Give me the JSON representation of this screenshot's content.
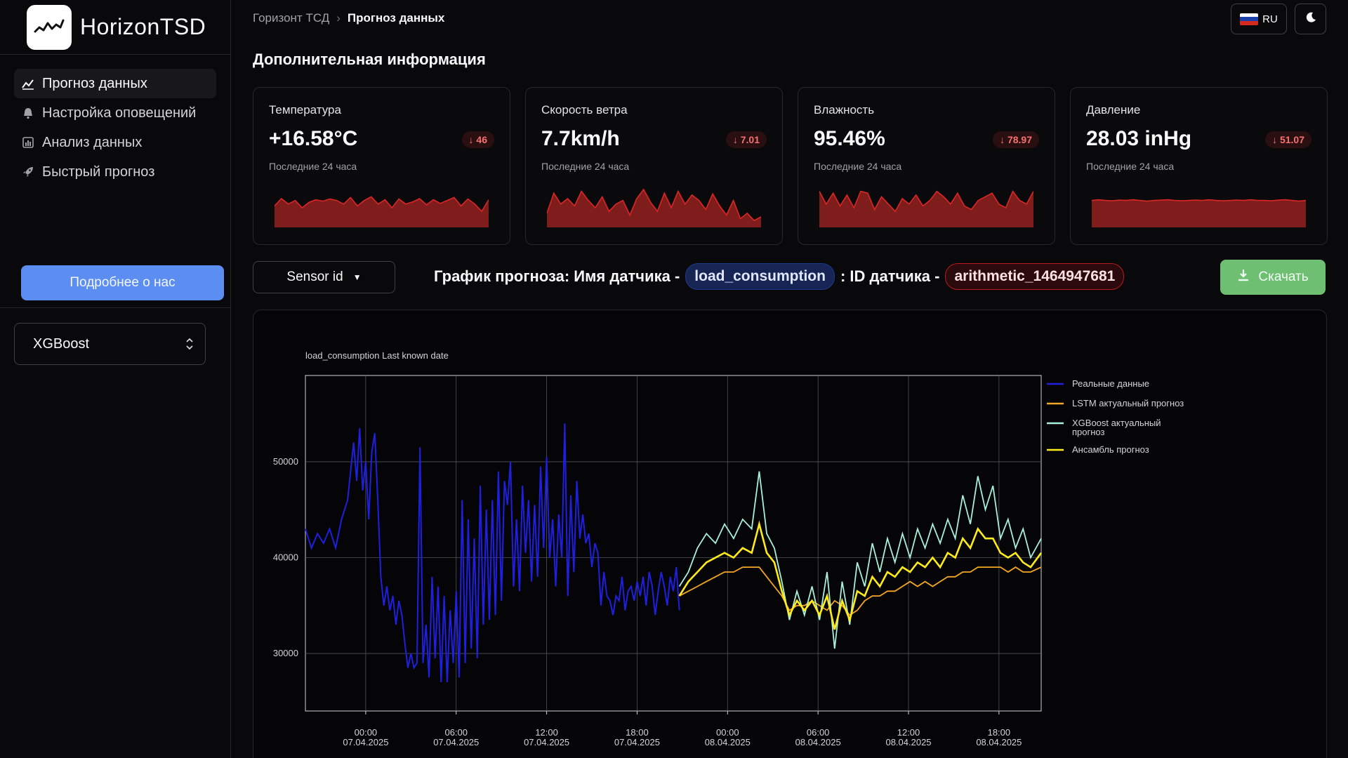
{
  "app": {
    "name": "HorizonTSD"
  },
  "sidebar": {
    "items": [
      {
        "label": "Прогноз данных",
        "icon": "chart-line-icon",
        "active": true
      },
      {
        "label": "Настройка оповещений",
        "icon": "bell-icon",
        "active": false
      },
      {
        "label": "Анализ данных",
        "icon": "bar-chart-icon",
        "active": false
      },
      {
        "label": "Быстрый прогноз",
        "icon": "rocket-icon",
        "active": false
      }
    ],
    "about_button": "Подробнее о нас",
    "model_select": {
      "value": "XGBoost"
    }
  },
  "breadcrumb": {
    "root": "Горизонт ТСД",
    "current": "Прогноз данных"
  },
  "header": {
    "language": "RU",
    "theme_icon": "moon-icon"
  },
  "section_title": "Дополнительная информация",
  "cards": [
    {
      "title": "Температура",
      "value": "+16.58°C",
      "delta": "↓ 46",
      "subtitle": "Последние 24 часа",
      "spark": [
        0.55,
        0.75,
        0.6,
        0.7,
        0.5,
        0.65,
        0.72,
        0.68,
        0.74,
        0.7,
        0.6,
        0.78,
        0.55,
        0.7,
        0.8,
        0.6,
        0.72,
        0.5,
        0.74,
        0.6,
        0.66,
        0.75,
        0.58,
        0.72,
        0.62,
        0.7,
        0.78,
        0.55,
        0.74,
        0.6,
        0.4,
        0.72
      ]
    },
    {
      "title": "Скорость ветра",
      "value": "7.7km/h",
      "delta": "↓ 7.01",
      "subtitle": "Последние 24 часа",
      "spark": [
        0.35,
        0.9,
        0.6,
        0.75,
        0.55,
        0.95,
        0.7,
        0.5,
        0.8,
        0.4,
        0.6,
        0.7,
        0.3,
        0.75,
        1.0,
        0.65,
        0.4,
        0.9,
        0.5,
        0.95,
        0.6,
        0.85,
        0.7,
        0.45,
        0.88,
        0.55,
        0.3,
        0.7,
        0.2,
        0.35,
        0.15,
        0.25
      ]
    },
    {
      "title": "Влажность",
      "value": "95.46%",
      "delta": "↓ 78.97",
      "subtitle": "Последние 24 часа",
      "spark": [
        0.95,
        0.6,
        0.9,
        0.55,
        0.85,
        0.5,
        0.95,
        0.9,
        0.45,
        0.8,
        0.6,
        0.4,
        0.75,
        0.6,
        0.85,
        0.55,
        0.7,
        0.95,
        0.8,
        0.6,
        0.9,
        0.55,
        0.45,
        0.7,
        0.8,
        0.9,
        0.6,
        0.5,
        0.95,
        0.7,
        0.6,
        0.95
      ]
    },
    {
      "title": "Давление",
      "value": "28.03 inHg",
      "delta": "↓ 51.07",
      "subtitle": "Последние 24 часа",
      "spark": [
        0.7,
        0.72,
        0.7,
        0.69,
        0.71,
        0.7,
        0.72,
        0.7,
        0.68,
        0.7,
        0.71,
        0.72,
        0.7,
        0.69,
        0.7,
        0.71,
        0.7,
        0.72,
        0.7,
        0.69,
        0.7,
        0.71,
        0.7,
        0.72,
        0.7,
        0.7,
        0.69,
        0.71,
        0.72,
        0.7,
        0.68,
        0.7
      ]
    }
  ],
  "controls": {
    "sensor_button": "Sensor id",
    "title_prefix": "График прогноза: Имя датчика -",
    "sensor_name": "load_consumption",
    "title_middle": ": ID датчика -",
    "sensor_id": "arithmetic_1464947681",
    "download": "Скачать"
  },
  "colors": {
    "real": "#1f1fe0",
    "lstm": "#f5a623",
    "xgboost": "#a8f0d8",
    "ensemble": "#ffeb1a",
    "spark_fill": "#7f1d1d",
    "spark_line": "#dc2626"
  },
  "chart_data": {
    "type": "line",
    "title": "load_consumption Last known date",
    "ylim": [
      24000,
      59000
    ],
    "yticks": [
      30000,
      40000,
      50000
    ],
    "x_ticks": [
      {
        "t": 4,
        "l1": "00:00",
        "l2": "07.04.2025"
      },
      {
        "t": 10,
        "l1": "06:00",
        "l2": "07.04.2025"
      },
      {
        "t": 16,
        "l1": "12:00",
        "l2": "07.04.2025"
      },
      {
        "t": 22,
        "l1": "18:00",
        "l2": "07.04.2025"
      },
      {
        "t": 28,
        "l1": "00:00",
        "l2": "08.04.2025"
      },
      {
        "t": 34,
        "l1": "06:00",
        "l2": "08.04.2025"
      },
      {
        "t": 40,
        "l1": "12:00",
        "l2": "08.04.2025"
      },
      {
        "t": 46,
        "l1": "18:00",
        "l2": "08.04.2025"
      }
    ],
    "xlim": [
      0,
      48.8
    ],
    "grid": true,
    "legend_position": "right",
    "series": [
      {
        "name": "Реальные данные",
        "key": "real",
        "x": [
          0,
          0.4,
          0.8,
          1.2,
          1.6,
          2,
          2.4,
          2.8,
          3,
          3.2,
          3.4,
          3.6,
          3.8,
          4,
          4.2,
          4.4,
          4.6,
          4.8,
          5,
          5.2,
          5.4,
          5.6,
          5.8,
          6,
          6.2,
          6.4,
          6.6,
          6.8,
          7,
          7.2,
          7.4,
          7.6,
          7.8,
          8,
          8.2,
          8.4,
          8.6,
          8.8,
          9,
          9.2,
          9.4,
          9.6,
          9.8,
          10,
          10.2,
          10.4,
          10.6,
          10.8,
          11,
          11.2,
          11.4,
          11.6,
          11.8,
          12,
          12.2,
          12.4,
          12.6,
          12.8,
          13,
          13.2,
          13.4,
          13.6,
          13.8,
          14,
          14.2,
          14.4,
          14.6,
          14.8,
          15,
          15.2,
          15.4,
          15.6,
          15.8,
          16,
          16.2,
          16.4,
          16.6,
          16.8,
          17,
          17.2,
          17.4,
          17.6,
          17.8,
          18,
          18.2,
          18.4,
          18.6,
          18.8,
          19,
          19.2,
          19.4,
          19.6,
          19.8,
          20,
          20.2,
          20.4,
          20.6,
          20.8,
          21,
          21.2,
          21.4,
          21.6,
          21.8,
          22,
          22.2,
          22.4,
          22.6,
          22.8,
          23,
          23.2,
          23.4,
          23.6,
          23.8,
          24,
          24.2,
          24.4,
          24.6,
          24.8
        ],
        "y": [
          43000,
          41000,
          42500,
          41500,
          43000,
          41000,
          44000,
          46000,
          49000,
          52000,
          48000,
          53500,
          47000,
          50000,
          44000,
          51000,
          53000,
          46000,
          38000,
          35000,
          37000,
          34500,
          36000,
          33000,
          35500,
          34000,
          31000,
          28500,
          30000,
          28500,
          29000,
          51500,
          29000,
          33000,
          27500,
          38000,
          29500,
          37000,
          27000,
          36000,
          27000,
          34500,
          29000,
          36500,
          27500,
          46000,
          29000,
          44000,
          30500,
          42000,
          29500,
          47500,
          33000,
          45000,
          33500,
          46000,
          34000,
          49000,
          35500,
          48000,
          45500,
          50000,
          37000,
          44000,
          36500,
          47500,
          40500,
          46000,
          37500,
          45500,
          38000,
          49500,
          41000,
          50500,
          40000,
          44000,
          37000,
          44500,
          40000,
          54000,
          36000,
          46500,
          38500,
          48000,
          42000,
          44500,
          41500,
          42500,
          39000,
          41500,
          40500,
          35000,
          38500,
          36000,
          35500,
          34000,
          36000,
          35500,
          38000,
          34500,
          36500,
          37000,
          35500,
          37500,
          36000,
          38000,
          35000,
          38500,
          37000,
          34000,
          36500,
          38500,
          37000,
          35000,
          38000,
          36500,
          39000,
          34500
        ],
        "split": 24.8
      },
      {
        "name": "LSTM актуальный прогноз",
        "key": "lstm"
      },
      {
        "name": "XGBoost актуальный прогноз",
        "key": "xgboost"
      },
      {
        "name": "Ансамбль прогноз",
        "key": "ensemble"
      }
    ],
    "forecast_points": [
      {
        "x": 24.8,
        "lstm": 36000,
        "xgb": 37000,
        "ens": 36000
      },
      {
        "x": 25.4,
        "lstm": 36500,
        "xgb": 38500,
        "ens": 37500
      },
      {
        "x": 26,
        "lstm": 37000,
        "xgb": 41000,
        "ens": 38500
      },
      {
        "x": 26.6,
        "lstm": 37500,
        "xgb": 42500,
        "ens": 39500
      },
      {
        "x": 27.2,
        "lstm": 38000,
        "xgb": 41500,
        "ens": 40000
      },
      {
        "x": 27.8,
        "lstm": 38500,
        "xgb": 43500,
        "ens": 40500
      },
      {
        "x": 28.4,
        "lstm": 38500,
        "xgb": 42000,
        "ens": 40000
      },
      {
        "x": 29,
        "lstm": 39000,
        "xgb": 44000,
        "ens": 41000
      },
      {
        "x": 29.6,
        "lstm": 39000,
        "xgb": 43000,
        "ens": 40500
      },
      {
        "x": 30.1,
        "lstm": 39000,
        "xgb": 49000,
        "ens": 43500
      },
      {
        "x": 30.6,
        "lstm": 38000,
        "xgb": 42500,
        "ens": 40500
      },
      {
        "x": 31.1,
        "lstm": 37000,
        "xgb": 41000,
        "ens": 39500
      },
      {
        "x": 31.6,
        "lstm": 36000,
        "xgb": 37500,
        "ens": 36500
      },
      {
        "x": 32.1,
        "lstm": 34500,
        "xgb": 33500,
        "ens": 34000
      },
      {
        "x": 32.6,
        "lstm": 35000,
        "xgb": 36500,
        "ens": 35500
      },
      {
        "x": 33.1,
        "lstm": 35000,
        "xgb": 34000,
        "ens": 34500
      },
      {
        "x": 33.6,
        "lstm": 35500,
        "xgb": 37000,
        "ens": 35500
      },
      {
        "x": 34.1,
        "lstm": 35000,
        "xgb": 33500,
        "ens": 34000
      },
      {
        "x": 34.6,
        "lstm": 34500,
        "xgb": 38500,
        "ens": 36000
      },
      {
        "x": 35.1,
        "lstm": 35500,
        "xgb": 30500,
        "ens": 32500
      },
      {
        "x": 35.6,
        "lstm": 35000,
        "xgb": 37500,
        "ens": 35500
      },
      {
        "x": 36.1,
        "lstm": 34000,
        "xgb": 33000,
        "ens": 33500
      },
      {
        "x": 36.6,
        "lstm": 34500,
        "xgb": 39500,
        "ens": 36500
      },
      {
        "x": 37.1,
        "lstm": 35500,
        "xgb": 37000,
        "ens": 36000
      },
      {
        "x": 37.6,
        "lstm": 36000,
        "xgb": 41500,
        "ens": 38000
      },
      {
        "x": 38.1,
        "lstm": 36000,
        "xgb": 38500,
        "ens": 37000
      },
      {
        "x": 38.6,
        "lstm": 36500,
        "xgb": 42000,
        "ens": 38500
      },
      {
        "x": 39.1,
        "lstm": 36500,
        "xgb": 39500,
        "ens": 38000
      },
      {
        "x": 39.6,
        "lstm": 37000,
        "xgb": 42500,
        "ens": 39000
      },
      {
        "x": 40.1,
        "lstm": 37500,
        "xgb": 40000,
        "ens": 38500
      },
      {
        "x": 40.6,
        "lstm": 37000,
        "xgb": 43000,
        "ens": 39500
      },
      {
        "x": 41.1,
        "lstm": 37500,
        "xgb": 41000,
        "ens": 39000
      },
      {
        "x": 41.6,
        "lstm": 37000,
        "xgb": 43500,
        "ens": 40000
      },
      {
        "x": 42.1,
        "lstm": 37500,
        "xgb": 41500,
        "ens": 39000
      },
      {
        "x": 42.6,
        "lstm": 38000,
        "xgb": 44000,
        "ens": 40500
      },
      {
        "x": 43.1,
        "lstm": 38000,
        "xgb": 42000,
        "ens": 40000
      },
      {
        "x": 43.6,
        "lstm": 38500,
        "xgb": 46500,
        "ens": 42000
      },
      {
        "x": 44.1,
        "lstm": 38500,
        "xgb": 43500,
        "ens": 41000
      },
      {
        "x": 44.6,
        "lstm": 39000,
        "xgb": 48500,
        "ens": 43000
      },
      {
        "x": 45.1,
        "lstm": 39000,
        "xgb": 45000,
        "ens": 42000
      },
      {
        "x": 45.6,
        "lstm": 39000,
        "xgb": 47500,
        "ens": 42000
      },
      {
        "x": 46.1,
        "lstm": 39000,
        "xgb": 42000,
        "ens": 40500
      },
      {
        "x": 46.6,
        "lstm": 38500,
        "xgb": 44000,
        "ens": 40000
      },
      {
        "x": 47.1,
        "lstm": 39000,
        "xgb": 41000,
        "ens": 40500
      },
      {
        "x": 47.6,
        "lstm": 38500,
        "xgb": 43000,
        "ens": 39500
      },
      {
        "x": 48.1,
        "lstm": 38500,
        "xgb": 40000,
        "ens": 39000
      },
      {
        "x": 48.8,
        "lstm": 39000,
        "xgb": 42000,
        "ens": 40500
      }
    ]
  }
}
